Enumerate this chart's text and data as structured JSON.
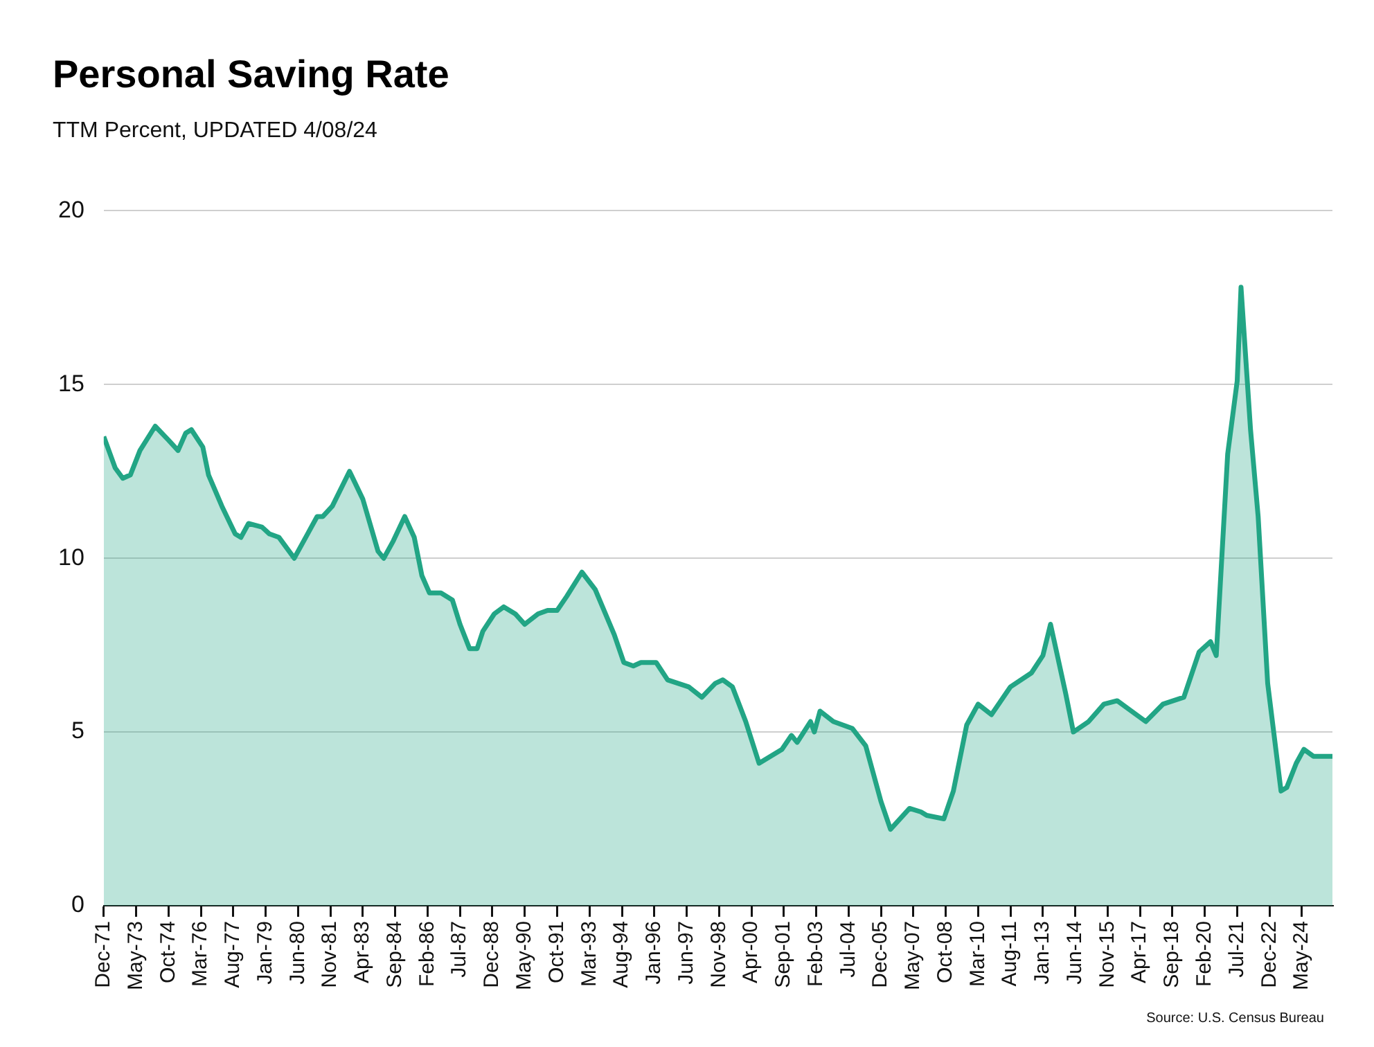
{
  "chart_data": {
    "type": "area",
    "title": "Personal Saving Rate",
    "subtitle": "TTM Percent, UPDATED 4/08/24",
    "annotations": [
      "Source: U.S. Census Bureau"
    ],
    "x": [
      "1971-12",
      "1972-06",
      "1972-10",
      "1973-02",
      "1973-07",
      "1974-03",
      "1974-10",
      "1975-03",
      "1975-07",
      "1975-10",
      "1976-04",
      "1976-07",
      "1977-02",
      "1977-09",
      "1977-12",
      "1978-04",
      "1978-11",
      "1979-03",
      "1979-08",
      "1980-04",
      "1980-11",
      "1981-04",
      "1981-07",
      "1981-12",
      "1982-09",
      "1983-04",
      "1983-12",
      "1984-03",
      "1984-08",
      "1985-02",
      "1985-07",
      "1985-11",
      "1986-03",
      "1986-09",
      "1987-03",
      "1987-07",
      "1987-12",
      "1988-04",
      "1988-07",
      "1989-01",
      "1989-06",
      "1989-12",
      "1990-05",
      "1990-12",
      "1991-05",
      "1991-10",
      "1992-03",
      "1992-11",
      "1993-06",
      "1994-04",
      "1994-09",
      "1995-02",
      "1995-06",
      "1996-02",
      "1996-08",
      "1997-07",
      "1998-02",
      "1998-09",
      "1999-01",
      "1999-06",
      "2000-01",
      "2000-08",
      "2001-08",
      "2002-01",
      "2002-04",
      "2002-11",
      "2003-01",
      "2003-04",
      "2003-11",
      "2004-09",
      "2005-04",
      "2005-12",
      "2006-05",
      "2007-03",
      "2007-09",
      "2007-12",
      "2008-09",
      "2009-02",
      "2009-09",
      "2010-03",
      "2010-10",
      "2011-08",
      "2012-07",
      "2013-01",
      "2013-05",
      "2014-01",
      "2014-05",
      "2015-01",
      "2015-09",
      "2016-04",
      "2017-07",
      "2018-04",
      "2019-03",
      "2019-11",
      "2020-05",
      "2020-08",
      "2021-02",
      "2021-07",
      "2021-09",
      "2022-02",
      "2022-06",
      "2022-11",
      "2023-06",
      "2023-09",
      "2024-02",
      "2024-06",
      "2024-11",
      "2025-04",
      "2025-09"
    ],
    "series": [
      {
        "color": "#22a585",
        "values": [
          13.5,
          12.6,
          12.3,
          12.4,
          13.1,
          13.8,
          13.4,
          13.1,
          13.6,
          13.7,
          13.2,
          12.4,
          11.5,
          10.7,
          10.6,
          11.0,
          10.9,
          10.7,
          10.6,
          10.0,
          10.7,
          11.2,
          11.2,
          11.5,
          12.5,
          11.7,
          10.2,
          10.0,
          10.5,
          11.2,
          10.6,
          9.5,
          9.0,
          9.0,
          8.8,
          8.1,
          7.4,
          7.4,
          7.9,
          8.4,
          8.6,
          8.4,
          8.1,
          8.4,
          8.5,
          8.5,
          8.9,
          9.6,
          9.1,
          7.8,
          7.0,
          6.9,
          7.0,
          7.0,
          6.5,
          6.3,
          6.0,
          6.4,
          6.5,
          6.3,
          5.3,
          4.1,
          4.5,
          4.9,
          4.7,
          5.3,
          5.0,
          5.6,
          5.3,
          5.1,
          4.6,
          3.0,
          2.2,
          2.8,
          2.7,
          2.6,
          2.5,
          3.3,
          5.2,
          5.8,
          5.5,
          6.3,
          6.7,
          7.2,
          8.1,
          6.1,
          5.0,
          5.3,
          5.8,
          5.9,
          5.3,
          5.8,
          6.0,
          7.3,
          7.6,
          7.2,
          13.0,
          15.1,
          17.8,
          13.7,
          11.2,
          6.4,
          3.3,
          3.4,
          4.1,
          4.5,
          4.3,
          4.3,
          4.3
        ]
      }
    ],
    "xlim": [
      "1971-12",
      "2025-09"
    ],
    "xticks": [
      {
        "value": "1971-12",
        "label": "Dec-71"
      },
      {
        "value": "1973-05",
        "label": "May-73"
      },
      {
        "value": "1974-10",
        "label": "Oct-74"
      },
      {
        "value": "1976-03",
        "label": "Mar-76"
      },
      {
        "value": "1977-08",
        "label": "Aug-77"
      },
      {
        "value": "1979-01",
        "label": "Jan-79"
      },
      {
        "value": "1980-06",
        "label": "Jun-80"
      },
      {
        "value": "1981-11",
        "label": "Nov-81"
      },
      {
        "value": "1983-04",
        "label": "Apr-83"
      },
      {
        "value": "1984-09",
        "label": "Sep-84"
      },
      {
        "value": "1986-02",
        "label": "Feb-86"
      },
      {
        "value": "1987-07",
        "label": "Jul-87"
      },
      {
        "value": "1988-12",
        "label": "Dec-88"
      },
      {
        "value": "1990-05",
        "label": "May-90"
      },
      {
        "value": "1991-10",
        "label": "Oct-91"
      },
      {
        "value": "1993-03",
        "label": "Mar-93"
      },
      {
        "value": "1994-08",
        "label": "Aug-94"
      },
      {
        "value": "1996-01",
        "label": "Jan-96"
      },
      {
        "value": "1997-06",
        "label": "Jun-97"
      },
      {
        "value": "1998-11",
        "label": "Nov-98"
      },
      {
        "value": "2000-04",
        "label": "Apr-00"
      },
      {
        "value": "2001-09",
        "label": "Sep-01"
      },
      {
        "value": "2003-02",
        "label": "Feb-03"
      },
      {
        "value": "2004-07",
        "label": "Jul-04"
      },
      {
        "value": "2005-12",
        "label": "Dec-05"
      },
      {
        "value": "2007-05",
        "label": "May-07"
      },
      {
        "value": "2008-10",
        "label": "Oct-08"
      },
      {
        "value": "2010-03",
        "label": "Mar-10"
      },
      {
        "value": "2011-08",
        "label": "Aug-11"
      },
      {
        "value": "2013-01",
        "label": "Jan-13"
      },
      {
        "value": "2014-06",
        "label": "Jun-14"
      },
      {
        "value": "2015-11",
        "label": "Nov-15"
      },
      {
        "value": "2017-04",
        "label": "Apr-17"
      },
      {
        "value": "2018-09",
        "label": "Sep-18"
      },
      {
        "value": "2020-02",
        "label": "Feb-20"
      },
      {
        "value": "2021-07",
        "label": "Jul-21"
      },
      {
        "value": "2022-12",
        "label": "Dec-22"
      },
      {
        "value": "2024-05",
        "label": "May-24"
      }
    ],
    "ylim": [
      0,
      20
    ],
    "yticks": [
      0,
      5,
      10,
      15,
      20
    ],
    "grid": "y",
    "legend": false
  }
}
